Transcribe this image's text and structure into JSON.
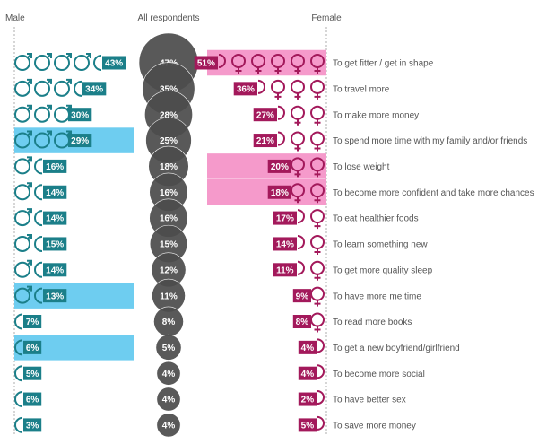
{
  "chart_data": {
    "type": "table",
    "columns": [
      "Male",
      "All respondents",
      "Female"
    ],
    "rows": [
      {
        "label": "To get fitter / get in shape",
        "male": 43,
        "all": 47,
        "female": 51,
        "male_hl": false,
        "female_hl": true
      },
      {
        "label": "To travel more",
        "male": 34,
        "all": 35,
        "female": 36,
        "male_hl": false,
        "female_hl": false
      },
      {
        "label": "To make more money",
        "male": 30,
        "all": 28,
        "female": 27,
        "male_hl": false,
        "female_hl": false
      },
      {
        "label": "To spend more time with my family and/or friends",
        "male": 29,
        "all": 25,
        "female": 21,
        "male_hl": true,
        "female_hl": false
      },
      {
        "label": "To lose weight",
        "male": 16,
        "all": 18,
        "female": 20,
        "male_hl": false,
        "female_hl": true
      },
      {
        "label": "To become more confident and take more chances",
        "male": 14,
        "all": 16,
        "female": 18,
        "male_hl": false,
        "female_hl": true
      },
      {
        "label": "To eat healthier foods",
        "male": 14,
        "all": 16,
        "female": 17,
        "male_hl": false,
        "female_hl": false
      },
      {
        "label": "To learn something new",
        "male": 15,
        "all": 15,
        "female": 14,
        "male_hl": false,
        "female_hl": false
      },
      {
        "label": "To get more quality sleep",
        "male": 14,
        "all": 12,
        "female": 11,
        "male_hl": false,
        "female_hl": false
      },
      {
        "label": "To have more me time",
        "male": 13,
        "all": 11,
        "female": 9,
        "male_hl": true,
        "female_hl": false
      },
      {
        "label": "To read more books",
        "male": 7,
        "all": 8,
        "female": 8,
        "male_hl": false,
        "female_hl": false
      },
      {
        "label": "To get a new boyfriend/girlfriend",
        "male": 6,
        "all": 5,
        "female": 4,
        "male_hl": true,
        "female_hl": false
      },
      {
        "label": "To become more social",
        "male": 5,
        "all": 4,
        "female": 4,
        "male_hl": false,
        "female_hl": false
      },
      {
        "label": "To have better sex",
        "male": 6,
        "all": 4,
        "female": 2,
        "male_hl": false,
        "female_hl": false
      },
      {
        "label": "To save more money",
        "male": 3,
        "all": 4,
        "female": 5,
        "male_hl": false,
        "female_hl": false
      }
    ],
    "unit": "%",
    "colors": {
      "male": "#1b7f89",
      "female": "#a3195b",
      "bubble": "#4d4d4d",
      "male_highlight": "#6ecdf0",
      "female_highlight": "#f59acb",
      "text": "#555555"
    }
  }
}
